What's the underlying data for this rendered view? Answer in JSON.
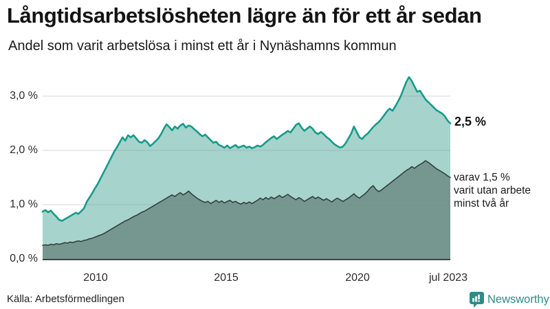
{
  "header": {
    "title": "Långtidsarbetslösheten lägre än för ett år sedan",
    "subtitle": "Andel som varit arbetslösa i minst ett år i Nynäshamns kommun"
  },
  "chart_data": {
    "type": "area",
    "title": "Långtidsarbetslösheten lägre än för ett år sedan",
    "subtitle": "Andel som varit arbetslösa i minst ett år i Nynäshamns kommun",
    "unit": "%",
    "x_range": [
      "2008",
      "jul 2023"
    ],
    "x_ticks": [
      "2010",
      "2015",
      "2020",
      "jul 2023"
    ],
    "y_ticks_top_to_bottom": [
      "3,0 %",
      "2,0 %",
      "1,0 %",
      "0,0 %"
    ],
    "ylim": [
      0,
      3.5
    ],
    "grid": true,
    "legend_position": "right-annotations",
    "series": [
      {
        "name": "Arbetslösa minst ett år",
        "end_value": 2.5,
        "end_label": "2,5 %",
        "color": "#179a8a",
        "fill": "#a6d3cc",
        "values": [
          0.87,
          0.9,
          0.86,
          0.89,
          0.83,
          0.78,
          0.72,
          0.7,
          0.73,
          0.76,
          0.79,
          0.82,
          0.85,
          0.83,
          0.88,
          0.93,
          1.05,
          1.13,
          1.21,
          1.3,
          1.38,
          1.48,
          1.58,
          1.68,
          1.78,
          1.88,
          1.98,
          2.06,
          2.15,
          2.24,
          2.18,
          2.28,
          2.24,
          2.28,
          2.22,
          2.16,
          2.14,
          2.19,
          2.15,
          2.08,
          2.12,
          2.17,
          2.22,
          2.3,
          2.4,
          2.48,
          2.43,
          2.37,
          2.44,
          2.4,
          2.46,
          2.49,
          2.42,
          2.46,
          2.44,
          2.39,
          2.35,
          2.3,
          2.26,
          2.29,
          2.24,
          2.19,
          2.14,
          2.16,
          2.1,
          2.08,
          2.05,
          2.09,
          2.04,
          2.07,
          2.1,
          2.05,
          2.07,
          2.09,
          2.05,
          2.07,
          2.04,
          2.06,
          2.09,
          2.07,
          2.1,
          2.15,
          2.19,
          2.23,
          2.26,
          2.21,
          2.25,
          2.29,
          2.32,
          2.36,
          2.33,
          2.4,
          2.47,
          2.5,
          2.42,
          2.36,
          2.4,
          2.44,
          2.4,
          2.33,
          2.3,
          2.34,
          2.3,
          2.25,
          2.21,
          2.16,
          2.11,
          2.08,
          2.05,
          2.07,
          2.13,
          2.22,
          2.31,
          2.44,
          2.34,
          2.24,
          2.21,
          2.27,
          2.31,
          2.37,
          2.43,
          2.48,
          2.52,
          2.58,
          2.65,
          2.72,
          2.77,
          2.73,
          2.81,
          2.9,
          3.0,
          3.13,
          3.26,
          3.35,
          3.28,
          3.18,
          3.08,
          3.1,
          3.02,
          2.94,
          2.89,
          2.84,
          2.79,
          2.74,
          2.71,
          2.68,
          2.63,
          2.55,
          2.5
        ]
      },
      {
        "name": "varav utan arbete minst två år",
        "end_value": 1.5,
        "end_label": "varav 1,5 % varit utan arbete minst två år",
        "color": "#323f3c",
        "fill": "#75978f",
        "values": [
          0.25,
          0.26,
          0.25,
          0.27,
          0.26,
          0.28,
          0.27,
          0.28,
          0.3,
          0.29,
          0.31,
          0.3,
          0.32,
          0.33,
          0.32,
          0.34,
          0.35,
          0.37,
          0.38,
          0.4,
          0.42,
          0.44,
          0.46,
          0.49,
          0.52,
          0.55,
          0.58,
          0.61,
          0.64,
          0.67,
          0.7,
          0.72,
          0.75,
          0.78,
          0.8,
          0.83,
          0.86,
          0.88,
          0.91,
          0.94,
          0.97,
          1.0,
          1.03,
          1.06,
          1.09,
          1.12,
          1.15,
          1.18,
          1.15,
          1.19,
          1.22,
          1.18,
          1.21,
          1.25,
          1.2,
          1.16,
          1.12,
          1.09,
          1.06,
          1.04,
          1.06,
          1.02,
          1.05,
          1.08,
          1.04,
          1.07,
          1.03,
          1.06,
          1.08,
          1.04,
          1.06,
          1.03,
          1.01,
          1.04,
          1.02,
          1.05,
          1.02,
          1.05,
          1.08,
          1.12,
          1.09,
          1.13,
          1.1,
          1.14,
          1.11,
          1.14,
          1.17,
          1.13,
          1.16,
          1.19,
          1.15,
          1.12,
          1.09,
          1.13,
          1.1,
          1.06,
          1.09,
          1.12,
          1.15,
          1.11,
          1.14,
          1.11,
          1.08,
          1.11,
          1.08,
          1.05,
          1.09,
          1.12,
          1.09,
          1.06,
          1.09,
          1.12,
          1.16,
          1.2,
          1.15,
          1.12,
          1.16,
          1.2,
          1.25,
          1.31,
          1.35,
          1.28,
          1.24,
          1.27,
          1.31,
          1.35,
          1.39,
          1.43,
          1.47,
          1.51,
          1.55,
          1.59,
          1.63,
          1.66,
          1.7,
          1.67,
          1.71,
          1.74,
          1.77,
          1.81,
          1.78,
          1.74,
          1.7,
          1.66,
          1.63,
          1.6,
          1.57,
          1.53,
          1.5
        ]
      }
    ]
  },
  "annotations": {
    "total_label": "2,5 %",
    "subset_line1": "varav 1,5 %",
    "subset_line2": "varit utan arbete",
    "subset_line3": "minst två år"
  },
  "footer": {
    "source": "Källa: Arbetsförmedlingen",
    "brand": "Newsworthy"
  },
  "colors": {
    "accent_teal": "#179a8a",
    "light_fill": "#a6d3cc",
    "dark_fill": "#75978f",
    "dark_stroke": "#323f3c",
    "gridline": "#d9dade",
    "baseline": "#3d4442",
    "brand_teal": "#2e8b87"
  }
}
